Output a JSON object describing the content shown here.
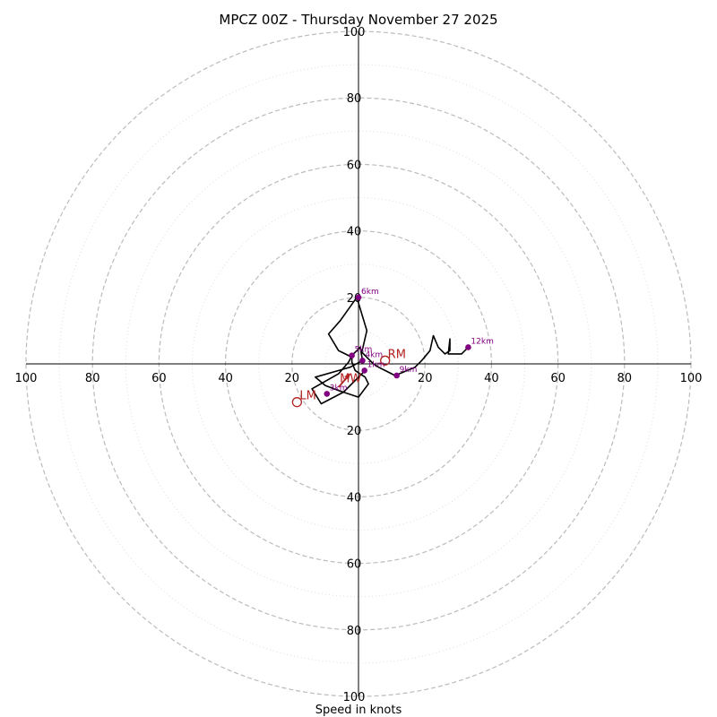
{
  "chart_data": {
    "type": "hodograph",
    "title": "MPCZ 00Z - Thursday November 27 2025",
    "xlabel": "Speed in knots",
    "max_speed": 100,
    "ring_labels": [
      "20",
      "40",
      "60",
      "80",
      "100"
    ],
    "ring_values": [
      20,
      40,
      60,
      80,
      100
    ],
    "minor_ring_values": [
      10,
      30,
      50,
      70,
      90
    ],
    "colors": {
      "trace": "#000000",
      "height_marker": "#800080",
      "motion": "#b22222",
      "grid": "#bbbbbb",
      "minor_grid": "#dddddd"
    },
    "wind_trace": [
      [
        2.0,
        -2.0
      ],
      [
        -4.5,
        -8.5
      ],
      [
        -11.2,
        -12.0
      ],
      [
        -14.0,
        -7.5
      ],
      [
        -6.0,
        -3.0
      ],
      [
        -3.0,
        0.5
      ],
      [
        -2.0,
        2.5
      ],
      [
        0.5,
        5.0
      ],
      [
        1.2,
        1.0
      ],
      [
        -2.5,
        -1.0
      ],
      [
        -13.0,
        -4.0
      ],
      [
        -10.0,
        -6.5
      ],
      [
        -6.0,
        -8.0
      ],
      [
        0.0,
        -10.0
      ],
      [
        3.0,
        -6.0
      ],
      [
        2.0,
        -4.0
      ],
      [
        -1.0,
        -2.0
      ],
      [
        -2.0,
        0.5
      ],
      [
        -2.0,
        2.0
      ],
      [
        -4.0,
        3.0
      ],
      [
        -6.0,
        4.0
      ],
      [
        -9.0,
        9.0
      ],
      [
        -5.5,
        13.0
      ],
      [
        -0.5,
        20.0
      ],
      [
        2.5,
        10.0
      ],
      [
        1.0,
        3.5
      ],
      [
        3.0,
        1.5
      ],
      [
        4.5,
        0.0
      ],
      [
        6.0,
        -1.0
      ],
      [
        8.0,
        -2.0
      ],
      [
        11.0,
        -3.5
      ],
      [
        17.0,
        -1.0
      ],
      [
        19.0,
        1.0
      ],
      [
        21.5,
        4.0
      ],
      [
        22.5,
        8.5
      ],
      [
        24.0,
        5.0
      ],
      [
        26.0,
        3.0
      ],
      [
        27.5,
        4.0
      ],
      [
        27.5,
        7.5
      ],
      [
        27.0,
        3.0
      ],
      [
        31.0,
        3.0
      ],
      [
        33.0,
        5.0
      ]
    ],
    "height_markers": [
      {
        "label": "1km",
        "u": 1.8,
        "v": -2.0
      },
      {
        "label": "3km",
        "u": -9.5,
        "v": -9.0
      },
      {
        "label": "4km",
        "u": 1.2,
        "v": 1.0
      },
      {
        "label": "5km",
        "u": -2.0,
        "v": 2.5
      },
      {
        "label": "6km",
        "u": 0.0,
        "v": 20.0
      },
      {
        "label": "9km",
        "u": 11.5,
        "v": -3.5
      },
      {
        "label": "12km",
        "u": 33.0,
        "v": 5.0
      }
    ],
    "storm_motion": [
      {
        "label": "RM",
        "u": 8.0,
        "v": 1.0
      },
      {
        "label": "LM",
        "u": -18.5,
        "v": -11.5
      },
      {
        "label": "MW",
        "u": -4.0,
        "v": -4.5
      }
    ],
    "mean_wind_arrow": {
      "from": [
        -6.0,
        -7.0
      ],
      "to": [
        -2.5,
        -3.0
      ]
    }
  }
}
